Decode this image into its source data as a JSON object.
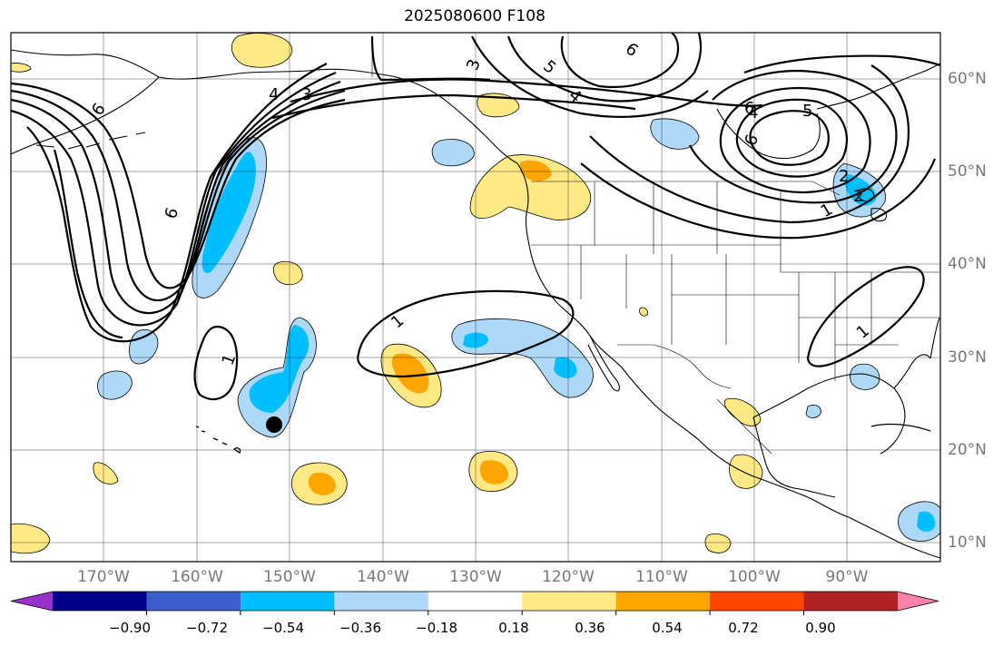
{
  "title": "2025080600 F108",
  "map": {
    "region": "North Pacific and North America",
    "projection": "PlateCarree",
    "extent_lon": [
      -180,
      -80
    ],
    "extent_lat": [
      8,
      65
    ],
    "gridlines": true,
    "lat_ticks": [
      "10°N",
      "20°N",
      "30°N",
      "40°N",
      "50°N",
      "60°N"
    ],
    "lon_ticks": [
      "170°W",
      "160°W",
      "150°W",
      "140°W",
      "130°W",
      "120°W",
      "110°W",
      "100°W",
      "90°W"
    ],
    "marker": {
      "type": "dot",
      "color": "#000000",
      "lon": -151.8,
      "lat": 22.7
    },
    "contour_labels": [
      "6",
      "6",
      "6",
      "4",
      "3",
      "3",
      "5",
      "6",
      "4",
      "4",
      "5",
      "6",
      "2",
      "2",
      "1",
      "1",
      "1",
      "1"
    ]
  },
  "colorbar": {
    "extend": "both",
    "colors": [
      "#9932cc",
      "#00008b",
      "#3a5fcd",
      "#00bfff",
      "#add8f7",
      "#ffffff",
      "#ffe985",
      "#ffa500",
      "#ff4500",
      "#b22222",
      "#ff82ab"
    ],
    "tick_labels": [
      "−0.90",
      "−0.72",
      "−0.54",
      "−0.36",
      "−0.18",
      "0.18",
      "0.36",
      "0.54",
      "0.72",
      "0.90"
    ]
  }
}
